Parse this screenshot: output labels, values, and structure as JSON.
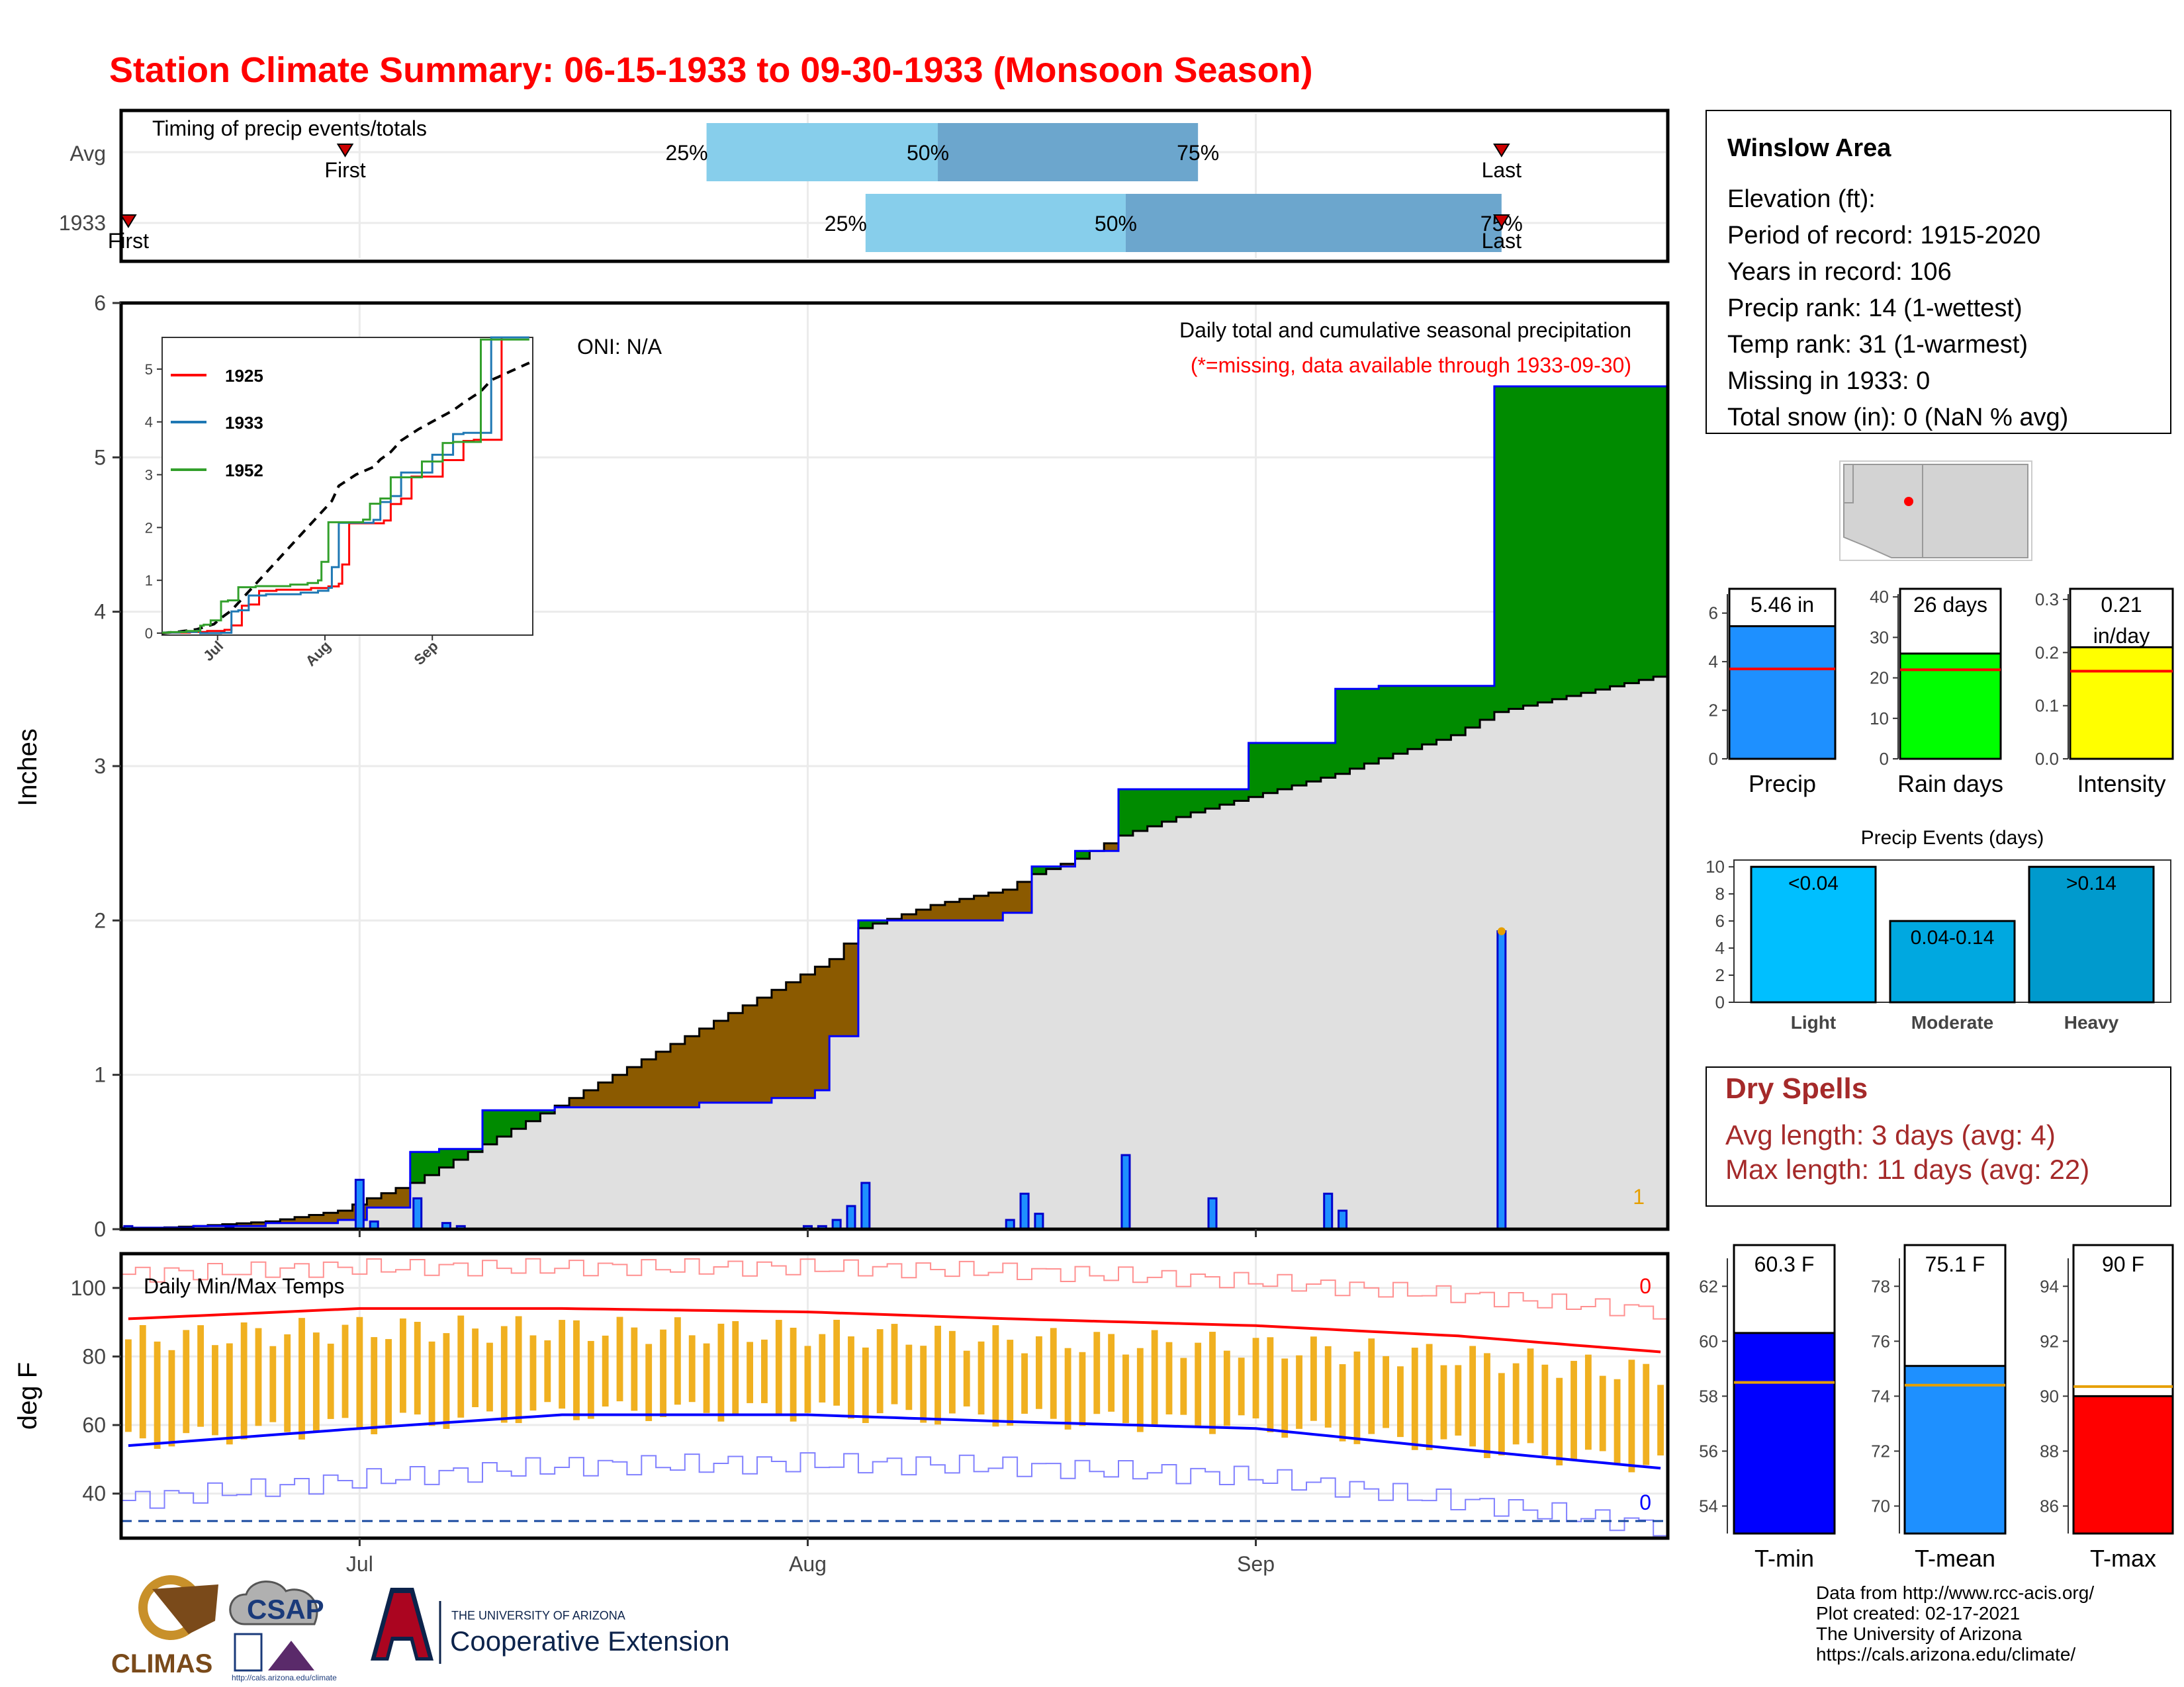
{
  "title": "Station Climate Summary: 06-15-1933 to 09-30-1933 (Monsoon Season)",
  "colors": {
    "title": "#ff0000",
    "light_blue": "#87ceeb",
    "mid_blue": "#6ca6cd",
    "green": "#008b00",
    "brown": "#8b5a00",
    "grey_fill": "#e0e0e0",
    "precip_bar": "#1e90ff",
    "rain_bar": "#00ff00",
    "intensity_bar": "#ffff00",
    "event_light": "#00bfff",
    "event_moderate": "#00a8e0",
    "event_heavy": "#009acd",
    "tmin": "#0000ff",
    "tmean": "#1e90ff",
    "tmax": "#ff0000",
    "temp_bar": "#f0b020",
    "dry_spells": "#a52a2a"
  },
  "timing": {
    "title": "Timing of precip events/totals",
    "rows": [
      "Avg",
      "1933"
    ],
    "avg": {
      "p25": "25%",
      "p50": "50%",
      "p75": "75%",
      "first": "First",
      "last": "Last"
    },
    "y1933": {
      "p25": "25%",
      "p50": "50%",
      "p75": "75%",
      "first": "First",
      "last": "Last"
    }
  },
  "main": {
    "ylabel": "Inches",
    "y_ticks": [
      "0",
      "1",
      "2",
      "3",
      "4",
      "5",
      "6"
    ],
    "x_ticks": [
      "Jul",
      "Aug",
      "Sep"
    ],
    "oni": "ONI: N/A",
    "legend_title": "Daily total and cumulative seasonal precipitation",
    "legend_note": "(*=missing, data available through 1933-09-30)",
    "count_label": "1"
  },
  "inset": {
    "y_ticks": [
      "0",
      "1",
      "2",
      "3",
      "4",
      "5"
    ],
    "x_ticks": [
      "Jul",
      "Aug",
      "Sep"
    ],
    "legend": [
      {
        "name": "1925",
        "color": "#ff0000"
      },
      {
        "name": "1933",
        "color": "#1f78b4"
      },
      {
        "name": "1952",
        "color": "#33a02c"
      }
    ]
  },
  "temps": {
    "title": "Daily Min/Max Temps",
    "ylabel": "deg F",
    "y_ticks": [
      "40",
      "60",
      "80",
      "100"
    ],
    "count_top": "0",
    "count_bottom": "0"
  },
  "station": {
    "name": "Winslow Area",
    "lines": [
      "Elevation (ft):",
      "Period of record: 1915-2020",
      "Years in record: 106",
      "Precip rank: 14 (1-wettest)",
      "Temp rank: 31 (1-warmest)",
      "Missing in 1933: 0",
      "Total snow (in): 0 (NaN % avg)"
    ]
  },
  "summary_bars": [
    {
      "label": "Precip",
      "value_label": "5.46 in",
      "value": 5.46,
      "avg": 3.7,
      "ymax": 7,
      "ticks": [
        "0",
        "2",
        "4",
        "6"
      ],
      "color": "#1e90ff"
    },
    {
      "label": "Rain days",
      "value_label": "26 days",
      "value": 26,
      "avg": 22,
      "ymax": 42,
      "ticks": [
        "0",
        "10",
        "20",
        "30",
        "40"
      ],
      "color": "#00ff00"
    },
    {
      "label": "Intensity",
      "value_label": "0.21",
      "value_label2": "in/day",
      "value": 0.21,
      "avg": 0.165,
      "ymax": 0.32,
      "ticks": [
        "0.0",
        "0.1",
        "0.2",
        "0.3"
      ],
      "color": "#ffff00"
    }
  ],
  "events": {
    "title": "Precip Events (days)",
    "ticks": [
      "0",
      "2",
      "4",
      "6",
      "8",
      "10"
    ],
    "bars": [
      {
        "label": "Light",
        "value_label": "<0.04",
        "value": 10
      },
      {
        "label": "Moderate",
        "value_label": "0.04-0.14",
        "value": 6
      },
      {
        "label": "Heavy",
        "value_label": ">0.14",
        "value": 10
      }
    ]
  },
  "dry_spells": {
    "title": "Dry Spells",
    "avg_length": "Avg length: 3 days (avg: 4)",
    "max_length": "Max length: 11 days (avg: 22)"
  },
  "temp_bars": [
    {
      "label": "T-min",
      "value_label": "60.3 F",
      "value": 60.3,
      "avg": 58.5,
      "ymin": 53,
      "ymax": 63.5,
      "ticks": [
        "54",
        "56",
        "58",
        "60",
        "62"
      ]
    },
    {
      "label": "T-mean",
      "value_label": "75.1 F",
      "value": 75.1,
      "avg": 74.4,
      "ymin": 69,
      "ymax": 79.5,
      "ticks": [
        "70",
        "72",
        "74",
        "76",
        "78"
      ]
    },
    {
      "label": "T-max",
      "value_label": "90 F",
      "value": 90.0,
      "avg": 90.35,
      "ymin": 85,
      "ymax": 95.5,
      "ticks": [
        "86",
        "88",
        "90",
        "92",
        "94"
      ]
    }
  ],
  "logos": {
    "climas": "CLIMAS",
    "csap": "CSAP",
    "csap_url": "http://cals.arizona.edu/climate",
    "ua_small": "THE UNIVERSITY OF ARIZONA",
    "ua_ext": "Cooperative Extension"
  },
  "credits": [
    "Data from http://www.rcc-acis.org/",
    "Plot created: 02-17-2021",
    "The University of Arizona",
    "https://cals.arizona.edu/climate/"
  ],
  "chart_data": [
    {
      "type": "bar",
      "title": "Timing of precip events/totals",
      "categories": [
        "Avg",
        "1933"
      ],
      "series": [
        {
          "name": "First",
          "values": [
            "06-30",
            "06-15"
          ]
        },
        {
          "name": "25%",
          "values": [
            "07-25",
            "08-05"
          ]
        },
        {
          "name": "50%",
          "values": [
            "08-10",
            "08-23"
          ]
        },
        {
          "name": "75%",
          "values": [
            "08-28",
            "09-18"
          ]
        },
        {
          "name": "Last",
          "values": [
            "09-18",
            "09-18"
          ]
        }
      ]
    },
    {
      "type": "area",
      "title": "Daily total and cumulative seasonal precipitation",
      "xlabel": "",
      "ylabel": "Inches",
      "ylim": [
        0,
        6
      ],
      "x": [
        "06-15",
        "06-20",
        "06-25",
        "06-30",
        "07-02",
        "07-05",
        "07-07",
        "07-10",
        "07-15",
        "07-20",
        "07-25",
        "07-30",
        "08-02",
        "08-03",
        "08-05",
        "08-10",
        "08-15",
        "08-17",
        "08-20",
        "08-23",
        "08-28",
        "09-01",
        "09-05",
        "09-07",
        "09-10",
        "09-15",
        "09-17",
        "09-18",
        "09-30"
      ],
      "series": [
        {
          "name": "cumulative",
          "values": [
            0.01,
            0.02,
            0.04,
            0.06,
            0.14,
            0.5,
            0.52,
            0.77,
            0.79,
            0.79,
            0.82,
            0.85,
            0.9,
            1.25,
            2.0,
            2.0,
            2.05,
            2.35,
            2.45,
            2.85,
            2.85,
            3.15,
            3.15,
            3.5,
            3.52,
            3.52,
            3.52,
            5.46,
            5.46
          ]
        },
        {
          "name": "average",
          "values": [
            0.0,
            0.02,
            0.05,
            0.12,
            0.2,
            0.3,
            0.4,
            0.55,
            0.8,
            1.05,
            1.3,
            1.55,
            1.7,
            1.75,
            1.95,
            2.1,
            2.2,
            2.3,
            2.4,
            2.55,
            2.7,
            2.8,
            2.9,
            2.95,
            3.05,
            3.2,
            3.3,
            3.35,
            3.6
          ]
        }
      ]
    },
    {
      "type": "bar",
      "title": "Daily precipitation",
      "ylabel": "Inches",
      "x": [
        "06-15",
        "06-22",
        "07-01",
        "07-02",
        "07-05",
        "07-07",
        "07-08",
        "08-01",
        "08-02",
        "08-03",
        "08-04",
        "08-05",
        "08-15",
        "08-16",
        "08-17",
        "08-23",
        "08-29",
        "09-06",
        "09-07",
        "09-18"
      ],
      "values": [
        0.02,
        0.01,
        0.32,
        0.05,
        0.2,
        0.04,
        0.02,
        0.02,
        0.02,
        0.06,
        0.15,
        0.3,
        0.06,
        0.23,
        0.1,
        0.48,
        0.2,
        0.23,
        0.12,
        1.93
      ]
    },
    {
      "type": "line",
      "title": "Daily Min/Max Temps",
      "ylabel": "deg F",
      "ylim": [
        27,
        110
      ],
      "x": [
        "06-15",
        "07-01",
        "07-15",
        "08-01",
        "08-15",
        "09-01",
        "09-15",
        "09-30"
      ],
      "series": [
        {
          "name": "avg max",
          "values": [
            91,
            94,
            94,
            93,
            91,
            89,
            86,
            81
          ]
        },
        {
          "name": "avg min",
          "values": [
            54,
            59,
            63,
            63,
            61,
            59,
            53,
            47
          ]
        },
        {
          "name": "record max",
          "values": [
            104,
            106,
            106,
            106,
            105,
            102,
            98,
            93
          ]
        },
        {
          "name": "record min",
          "values": [
            38,
            44,
            48,
            49,
            48,
            45,
            38,
            30
          ]
        }
      ]
    },
    {
      "type": "bar",
      "title": "Precip Events (days)",
      "categories": [
        "Light",
        "Moderate",
        "Heavy"
      ],
      "values": [
        10,
        6,
        10
      ]
    }
  ]
}
